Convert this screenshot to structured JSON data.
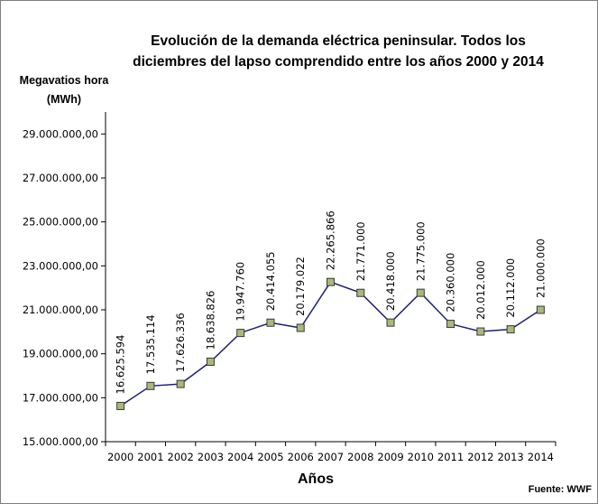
{
  "chart_data": {
    "type": "line",
    "title": "Evolución de la demanda eléctrica peninsular. Todos los diciembres del lapso comprendido entre los años 2000 y 2014",
    "title_lines": [
      "Evolución de la demanda eléctrica peninsular. Todos los",
      "diciembres del lapso comprendido entre los años 2000 y 2014"
    ],
    "ylabel_lines": [
      "Megavatios hora",
      "(MWh)"
    ],
    "xlabel": "Años",
    "source": "Fuente: WWF",
    "categories": [
      "2000",
      "2001",
      "2002",
      "2003",
      "2004",
      "2005",
      "2006",
      "2007",
      "2008",
      "2009",
      "2010",
      "2011",
      "2012",
      "2013",
      "2014"
    ],
    "values": [
      16625594,
      17535114,
      17626336,
      18638826,
      19947760,
      20414055,
      20179022,
      22265866,
      21771000,
      20418000,
      21775000,
      20360000,
      20012000,
      20112000,
      21000000
    ],
    "data_labels": [
      "16.625.594",
      "17.535.114",
      "17.626.336",
      "18.638.826",
      "19.947.760",
      "20.414.055",
      "20.179.022",
      "22.265.866",
      "21.771.000",
      "20.418.000",
      "21.775.000",
      "20.360.000",
      "20.012.000",
      "20.112.000",
      "21.000.000"
    ],
    "ylim": [
      15000000,
      30000000
    ],
    "yticks": [
      15000000,
      17000000,
      19000000,
      21000000,
      23000000,
      25000000,
      27000000,
      29000000
    ],
    "ytick_labels": [
      "15.000.000,00",
      "17.000.000,00",
      "19.000.000,00",
      "21.000.000,00",
      "23.000.000,00",
      "25.000.000,00",
      "27.000.000,00",
      "29.000.000,00"
    ],
    "grid": false,
    "legend": "none",
    "colors": {
      "line": "#1f1f7a",
      "marker_fill": "#a8b97a",
      "marker_edge": "#3a3a3a",
      "axis": "#000000"
    }
  }
}
